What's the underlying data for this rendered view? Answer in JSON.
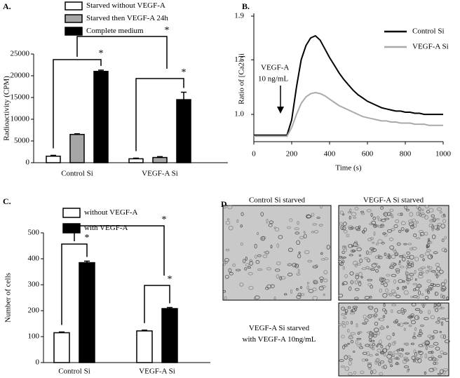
{
  "chart_data": [
    {
      "type": "bar",
      "panel_label": "A.",
      "y_label": "Radioactivity (CPM)",
      "categories": [
        "Control Si",
        "VEGF-A Si"
      ],
      "series": [
        {
          "name": "Starved without VEGF-A",
          "color": "#ffffff",
          "values": [
            1500,
            900
          ],
          "errors": [
            200,
            150
          ]
        },
        {
          "name": "Starved then VEGF-A 24h",
          "color": "#a6a6a6",
          "values": [
            6500,
            1200
          ],
          "errors": [
            150,
            200
          ]
        },
        {
          "name": "Complete medium",
          "color": "#000000",
          "values": [
            21000,
            14500
          ],
          "errors": [
            300,
            1700
          ]
        }
      ],
      "ylim": [
        0,
        25000
      ],
      "yticks": [
        0,
        5000,
        10000,
        15000,
        20000,
        25000
      ],
      "annotations": [
        "*",
        "*",
        "*"
      ]
    },
    {
      "type": "line",
      "panel_label": "B.",
      "x_label": "Time (s)",
      "y_label": "Ratio of [Ca2+]i",
      "x": [
        0,
        25,
        50,
        75,
        100,
        125,
        150,
        175,
        200,
        225,
        250,
        275,
        300,
        325,
        350,
        375,
        400,
        425,
        450,
        475,
        500,
        525,
        550,
        575,
        600,
        625,
        650,
        675,
        700,
        725,
        750,
        775,
        800,
        825,
        850,
        875,
        900,
        925,
        950,
        975,
        1000
      ],
      "series": [
        {
          "name": "Control Si",
          "color": "#000000",
          "values": [
            0.81,
            0.81,
            0.81,
            0.81,
            0.81,
            0.81,
            0.81,
            0.81,
            0.95,
            1.25,
            1.5,
            1.63,
            1.7,
            1.72,
            1.68,
            1.6,
            1.52,
            1.45,
            1.38,
            1.32,
            1.27,
            1.22,
            1.18,
            1.15,
            1.12,
            1.1,
            1.08,
            1.06,
            1.05,
            1.04,
            1.03,
            1.03,
            1.02,
            1.02,
            1.01,
            1.01,
            1.0,
            1.0,
            1.0,
            1.0,
            1.0
          ]
        },
        {
          "name": "VEGF-A Si",
          "color": "#aaaaaa",
          "values": [
            0.8,
            0.8,
            0.8,
            0.8,
            0.8,
            0.8,
            0.8,
            0.8,
            0.88,
            1.0,
            1.1,
            1.16,
            1.19,
            1.2,
            1.19,
            1.17,
            1.14,
            1.11,
            1.08,
            1.06,
            1.04,
            1.02,
            1.0,
            0.98,
            0.97,
            0.96,
            0.95,
            0.94,
            0.94,
            0.93,
            0.93,
            0.92,
            0.92,
            0.92,
            0.91,
            0.91,
            0.91,
            0.9,
            0.9,
            0.9,
            0.9
          ]
        }
      ],
      "xlim": [
        0,
        1000
      ],
      "xticks": [
        0,
        200,
        400,
        600,
        800,
        1000
      ],
      "ylim": [
        0.75,
        1.9
      ],
      "yticks": [
        {
          "value": 1,
          "label": "1.0"
        },
        1.5,
        1.9
      ],
      "annotations": [
        "VEGF-A",
        "10 ng/mL"
      ]
    },
    {
      "type": "bar",
      "panel_label": "C.",
      "y_label": "Number of cells",
      "categories": [
        "Control Si",
        "VEGF-A Si"
      ],
      "series": [
        {
          "name": "without VEGF-A",
          "color": "#ffffff",
          "values": [
            115,
            122
          ],
          "errors": [
            3,
            3
          ]
        },
        {
          "name": "with VEGF-A",
          "color": "#000000",
          "values": [
            385,
            208
          ],
          "errors": [
            6,
            4
          ]
        }
      ],
      "ylim": [
        0,
        500
      ],
      "yticks": [
        0,
        100,
        200,
        300,
        400,
        500
      ],
      "annotations": [
        "*",
        "*",
        "*"
      ]
    }
  ],
  "panel_d": {
    "panel_label": "D.",
    "images": [
      {
        "label": "Control Si starved"
      },
      {
        "label": "VEGF-A Si starved"
      },
      {
        "label": "VEGF-A Si starved with VEGF-A 10ng/mL"
      }
    ]
  }
}
